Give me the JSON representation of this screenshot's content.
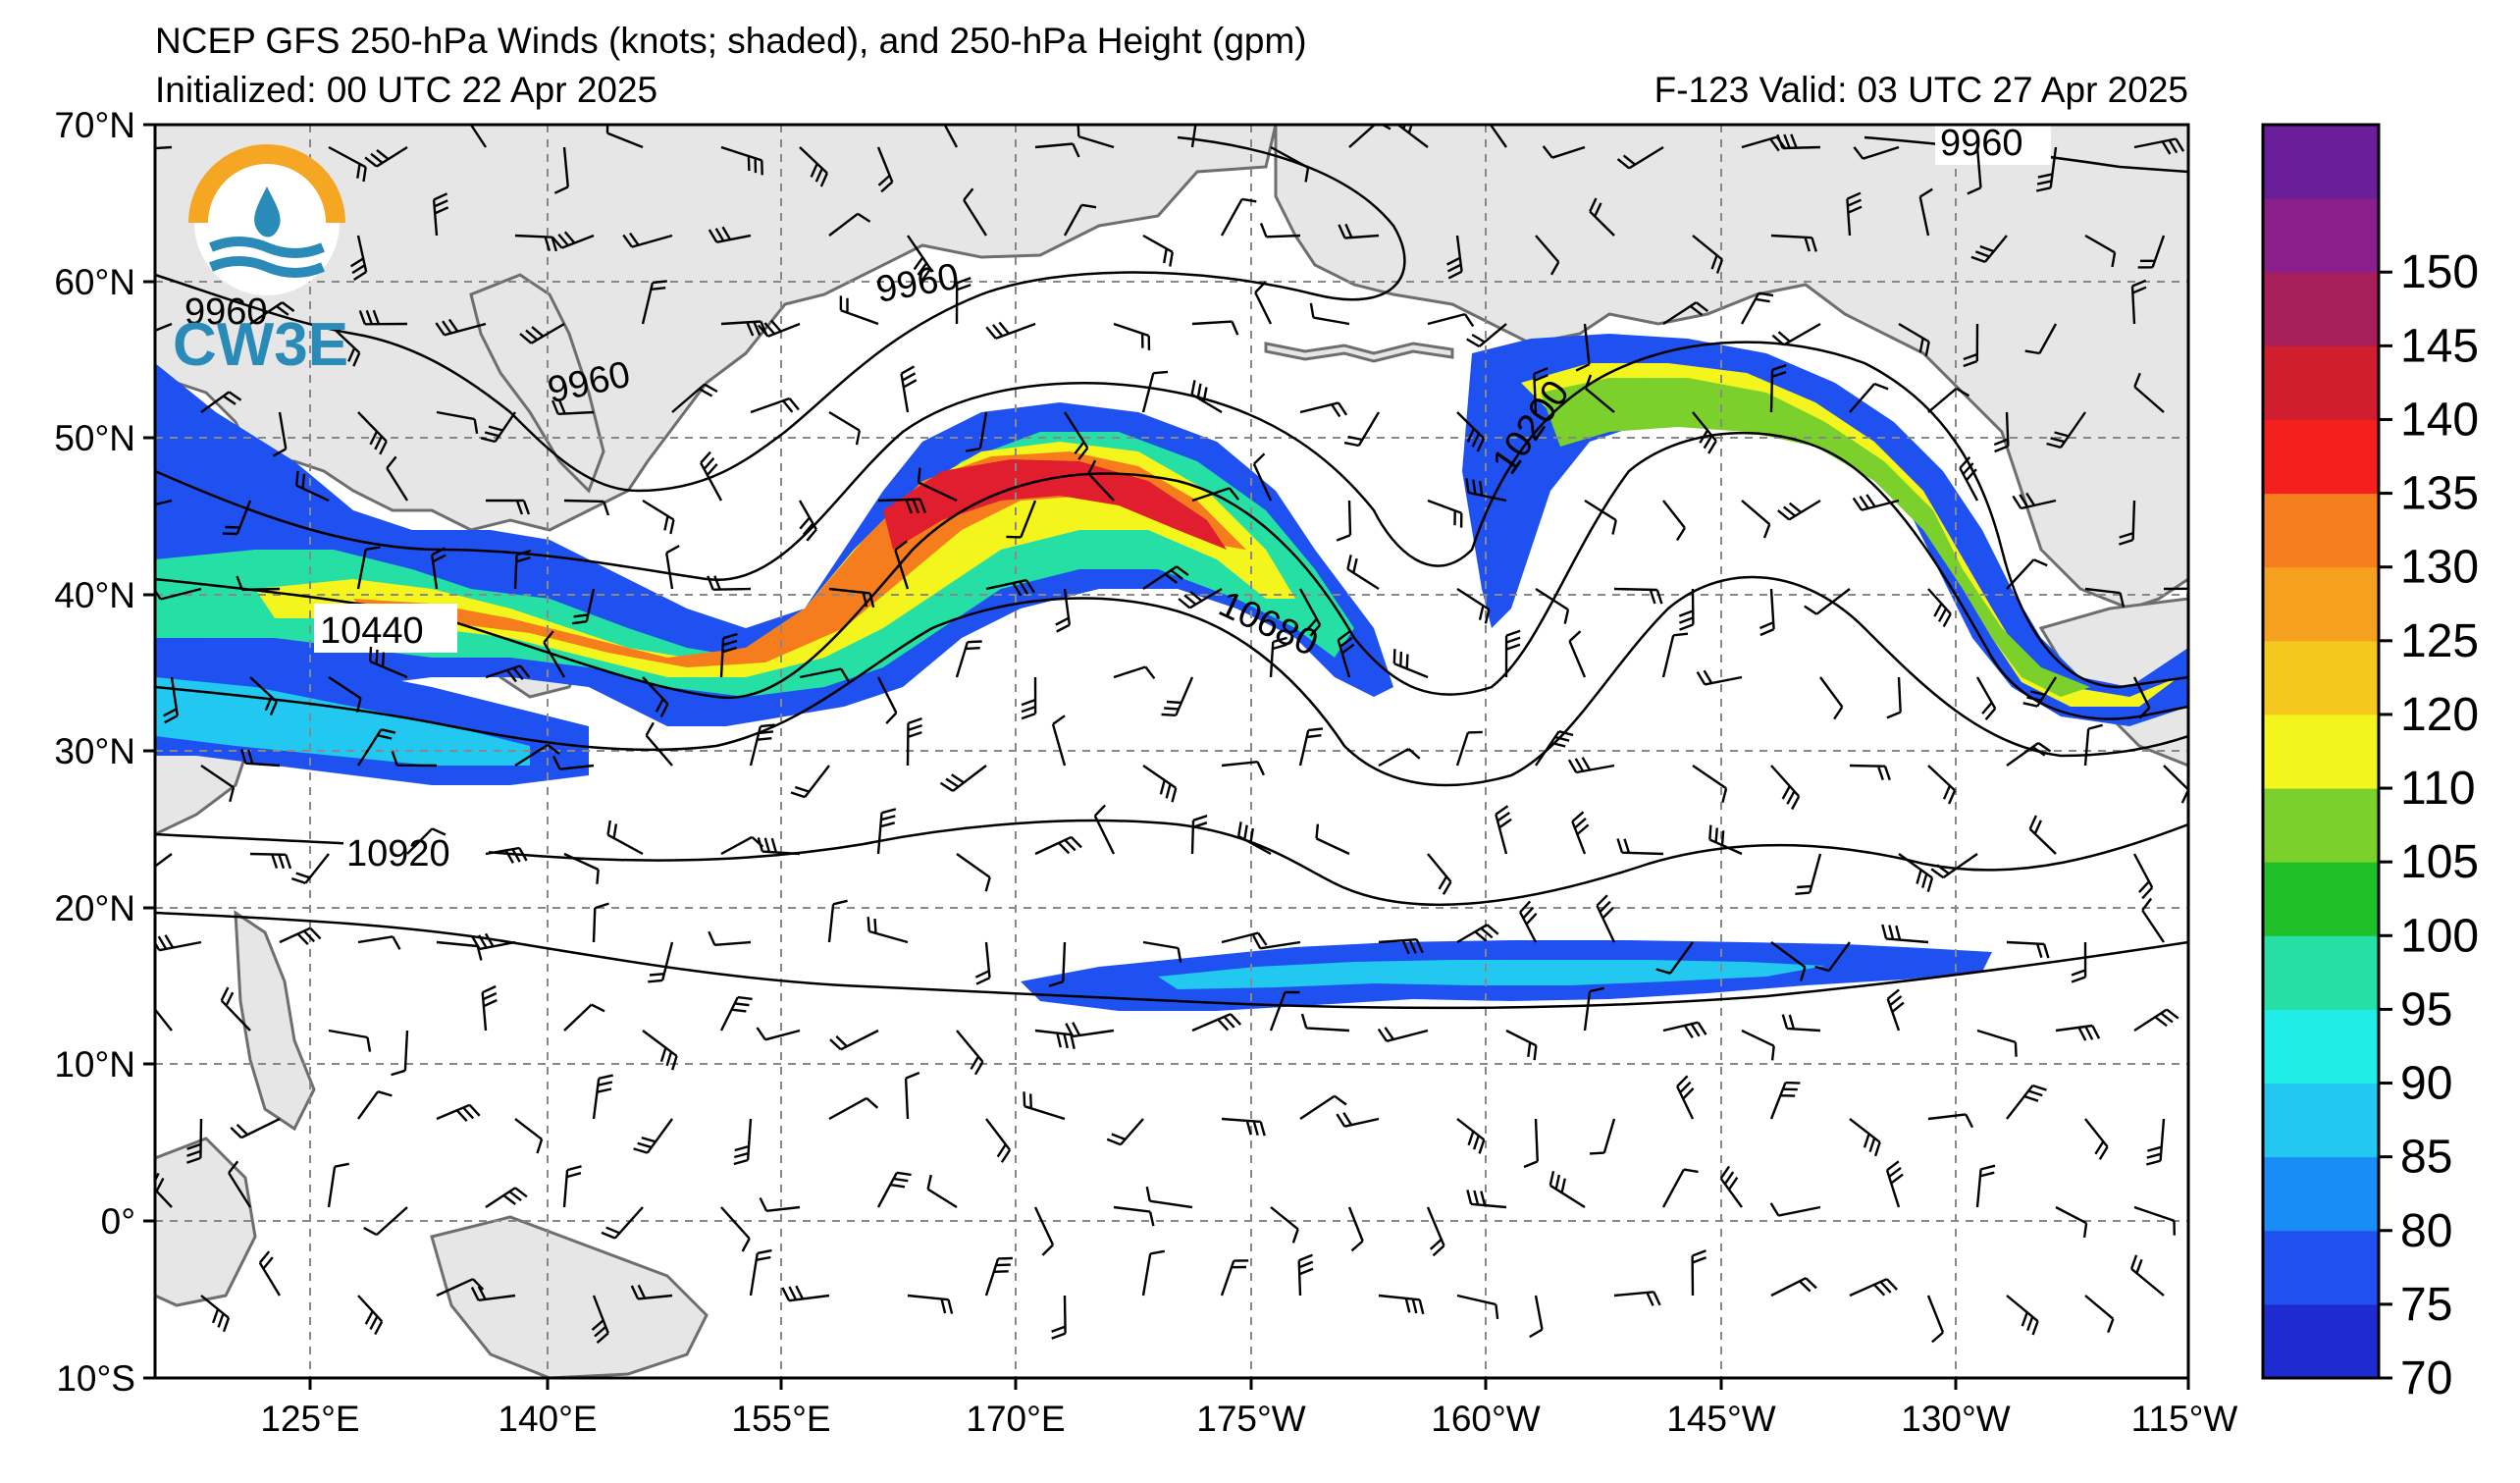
{
  "header": {
    "title": "NCEP GFS 250-hPa Winds (knots; shaded), and 250-hPa Height (gpm)",
    "initialized": "Initialized: 00 UTC 22 Apr 2025",
    "valid": "F-123  Valid: 03 UTC 27 Apr 2025"
  },
  "logo": {
    "text": "CW3E",
    "colors": {
      "ring": "#f5a623",
      "waves": "#2a8bb8"
    }
  },
  "axes": {
    "lon_labels": [
      "125°E",
      "140°E",
      "155°E",
      "170°E",
      "175°W",
      "160°W",
      "145°W",
      "130°W",
      "115°W"
    ],
    "lat_labels": [
      "70°N",
      "60°N",
      "50°N",
      "40°N",
      "30°N",
      "20°N",
      "10°N",
      "0°",
      "10°S"
    ]
  },
  "contour_labels": [
    "9960",
    "9960",
    "9960",
    "9960",
    "10200",
    "10440",
    "10680",
    "10920"
  ],
  "colorbar": {
    "ticks": [
      "70",
      "75",
      "80",
      "85",
      "90",
      "95",
      "100",
      "105",
      "110",
      "120",
      "125",
      "130",
      "135",
      "140",
      "145",
      "150"
    ],
    "colors": [
      "#1e2bd0",
      "#1f51f0",
      "#1a8cf5",
      "#22c8f0",
      "#20eee6",
      "#25dfa5",
      "#1fbf2a",
      "#7bd02b",
      "#f5f51e",
      "#f5c81e",
      "#f5a01e",
      "#f57d1e",
      "#f5201e",
      "#d01e2e",
      "#a81e5a",
      "#8a1e8a",
      "#6a1e9a"
    ]
  },
  "map_style": {
    "land": "#e6e6e6",
    "coast": "#6e6e6e",
    "ocean": "#ffffff",
    "grid": "#888888"
  }
}
